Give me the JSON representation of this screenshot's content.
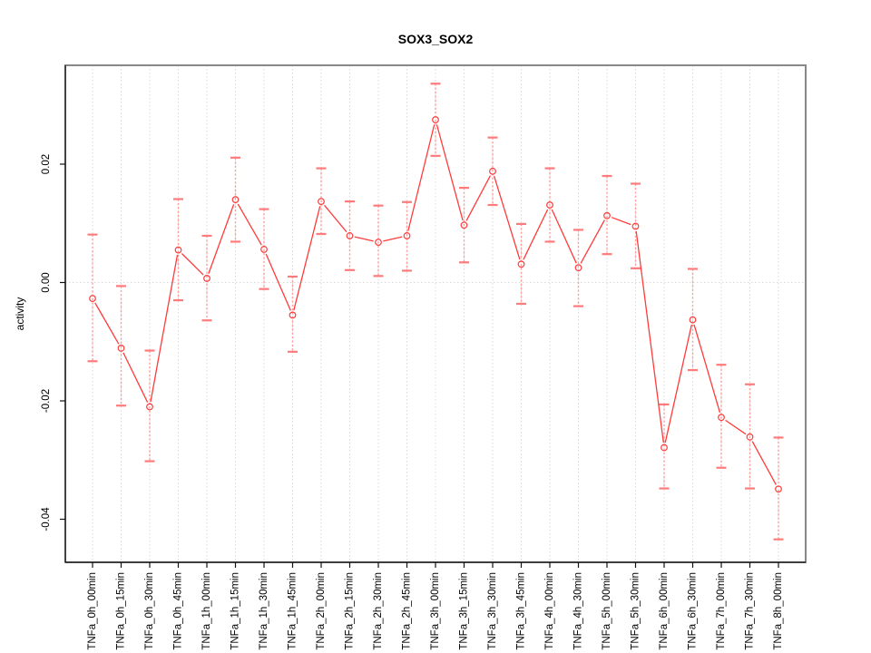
{
  "chart_data": {
    "type": "line",
    "title": "SOX3_SOX2",
    "xlabel": "",
    "ylabel": "activity",
    "categories": [
      "TNFa_0h_00min",
      "TNFa_0h_15min",
      "TNFa_0h_30min",
      "TNFa_0h_45min",
      "TNFa_1h_00min",
      "TNFa_1h_15min",
      "TNFa_1h_30min",
      "TNFa_1h_45min",
      "TNFa_2h_00min",
      "TNFa_2h_15min",
      "TNFa_2h_30min",
      "TNFa_2h_45min",
      "TNFa_3h_00min",
      "TNFa_3h_15min",
      "TNFa_3h_30min",
      "TNFa_3h_45min",
      "TNFa_4h_00min",
      "TNFa_4h_30min",
      "TNFa_5h_00min",
      "TNFa_5h_30min",
      "TNFa_6h_00min",
      "TNFa_6h_30min",
      "TNFa_7h_00min",
      "TNFa_7h_30min",
      "TNFa_8h_00min"
    ],
    "series": [
      {
        "name": "SOX3_SOX2",
        "values": [
          -0.0027,
          -0.0111,
          -0.021,
          0.0055,
          0.0007,
          0.014,
          0.0056,
          -0.0055,
          0.0137,
          0.0079,
          0.0068,
          0.0079,
          0.0275,
          0.0097,
          0.0188,
          0.0031,
          0.0131,
          0.0025,
          0.0113,
          0.0095,
          -0.0279,
          -0.0063,
          -0.0228,
          -0.0261,
          -0.0349
        ],
        "error_low": [
          -0.0133,
          -0.0208,
          -0.0302,
          -0.003,
          -0.0064,
          0.0069,
          -0.0011,
          -0.0117,
          0.0082,
          0.0021,
          0.0011,
          0.002,
          0.0214,
          0.0034,
          0.0131,
          -0.0036,
          0.0069,
          -0.004,
          0.0048,
          0.0024,
          -0.0348,
          -0.0148,
          -0.0313,
          -0.0348,
          -0.0434
        ],
        "error_high": [
          0.0081,
          -0.0006,
          -0.0115,
          0.0141,
          0.0079,
          0.0211,
          0.0124,
          0.001,
          0.0193,
          0.0137,
          0.013,
          0.0136,
          0.0336,
          0.016,
          0.0245,
          0.0099,
          0.0193,
          0.0089,
          0.018,
          0.0167,
          -0.0206,
          0.0023,
          -0.0139,
          -0.0172,
          -0.0262
        ]
      }
    ],
    "yticks": [
      -0.04,
      -0.02,
      0.0,
      0.02
    ],
    "ytick_labels": [
      "-0.04",
      "-0.02",
      "0.00",
      "0.02"
    ],
    "ylim": [
      -0.0465,
      0.0367
    ],
    "grid": {
      "vertical_dotted": true,
      "horizontal_dotted_at_zero": true
    },
    "legend": "none",
    "marker": "open-circle",
    "colors": {
      "line": "#ff3b3b",
      "error_bar": "#ff9d9d",
      "error_cap": "#ff7b7b",
      "grid": "#d9d9d9",
      "box": "#878787",
      "axis": "#111111",
      "text": "#000000",
      "background": "#ffffff"
    }
  }
}
